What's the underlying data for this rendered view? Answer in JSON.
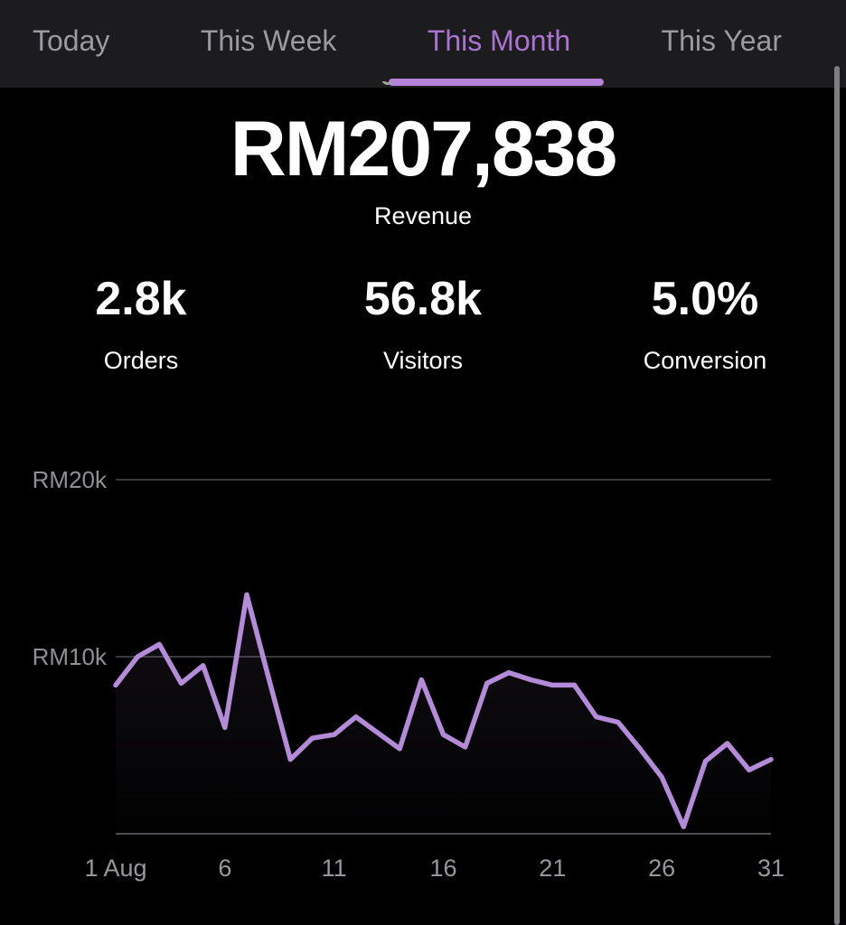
{
  "tabs": {
    "items": [
      {
        "label": "Today",
        "active": false
      },
      {
        "label": "This Week",
        "active": false
      },
      {
        "label": "This Month",
        "active": true
      },
      {
        "label": "This Year",
        "active": false
      }
    ]
  },
  "summary": {
    "revenue_value": "RM207,838",
    "revenue_label": "Revenue"
  },
  "stats": {
    "orders": {
      "value": "2.8k",
      "label": "Orders"
    },
    "visitors": {
      "value": "56.8k",
      "label": "Visitors"
    },
    "conversion": {
      "value": "5.0%",
      "label": "Conversion"
    }
  },
  "chart_data": {
    "type": "line",
    "x_unit": "day of August",
    "x": [
      1,
      2,
      3,
      4,
      5,
      6,
      7,
      8,
      9,
      10,
      11,
      12,
      13,
      14,
      15,
      16,
      17,
      18,
      19,
      20,
      21,
      22,
      23,
      24,
      25,
      26,
      27,
      28,
      29,
      30,
      31
    ],
    "values": [
      8400,
      10000,
      10700,
      8500,
      9500,
      6000,
      13500,
      8800,
      4200,
      5400,
      5600,
      6600,
      5700,
      4800,
      8700,
      5600,
      4900,
      8500,
      9100,
      8700,
      8400,
      8400,
      6600,
      6300,
      4800,
      3200,
      400,
      4100,
      5100,
      3600,
      4200
    ],
    "series_name": "Revenue (RM)",
    "y_ticks": [
      {
        "label": "RM20k",
        "value": 20000
      },
      {
        "label": "RM10k",
        "value": 10000
      }
    ],
    "x_ticks": [
      {
        "label": "1 Aug",
        "day": 1
      },
      {
        "label": "6",
        "day": 6
      },
      {
        "label": "11",
        "day": 11
      },
      {
        "label": "16",
        "day": 16
      },
      {
        "label": "21",
        "day": 21
      },
      {
        "label": "26",
        "day": 26
      },
      {
        "label": "31",
        "day": 31
      }
    ],
    "ylim": [
      0,
      22600
    ],
    "grid": "horizontal",
    "legend": false
  },
  "colors": {
    "background": "#000000",
    "tab_bar_bg": "#1c1c1e",
    "accent_purple": "#ab74d2",
    "underline_purple": "#b584da",
    "chart_line_purple": "#b48bd8",
    "inactive_tab_gray": "#9a9aa1",
    "axis_gray": "#8e8e93"
  }
}
